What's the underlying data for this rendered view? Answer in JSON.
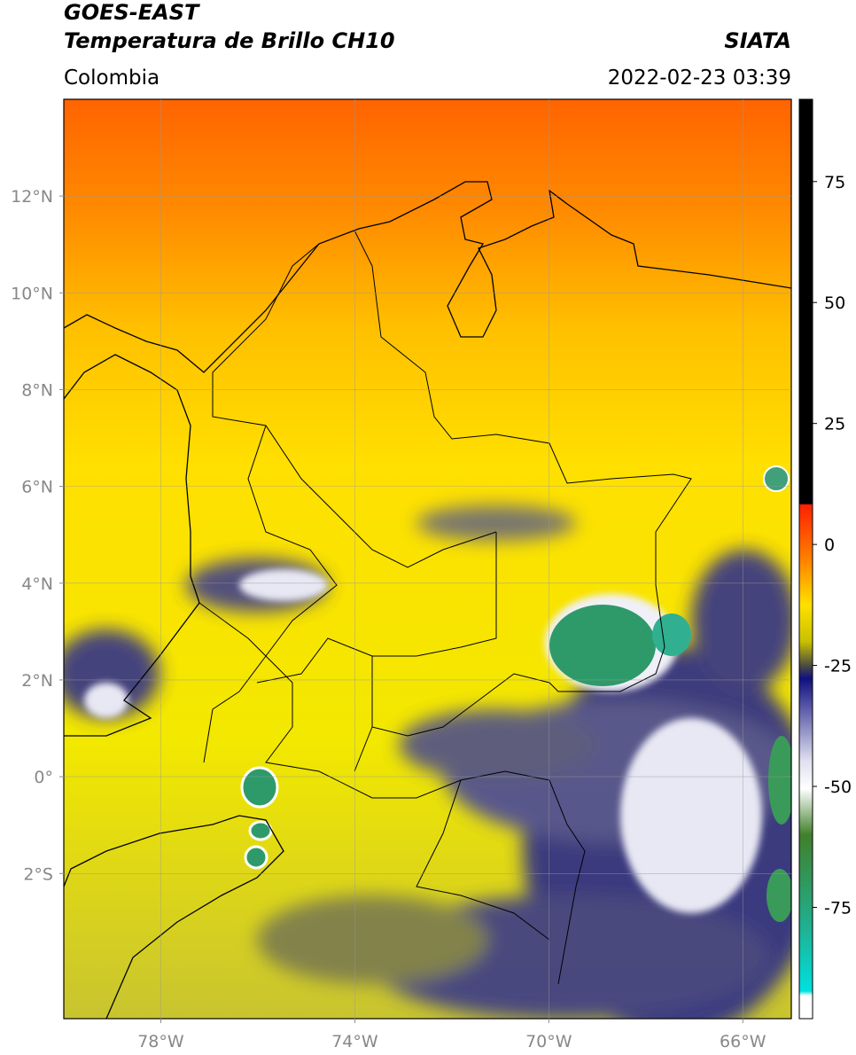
{
  "header": {
    "title": "GOES-EAST",
    "subtitle": "Temperatura de Brillo CH10",
    "source": "SIATA",
    "region": "Colombia",
    "datetime": "2022-02-23 03:39"
  },
  "map": {
    "xlim": [
      -80,
      -65
    ],
    "ylim": [
      -5,
      14
    ],
    "xticks": [
      {
        "value": -78,
        "label": "78°W"
      },
      {
        "value": -74,
        "label": "74°W"
      },
      {
        "value": -70,
        "label": "70°W"
      },
      {
        "value": -66,
        "label": "66°W"
      }
    ],
    "yticks": [
      {
        "value": 12,
        "label": "12°N"
      },
      {
        "value": 10,
        "label": "10°N"
      },
      {
        "value": 8,
        "label": "8°N"
      },
      {
        "value": 6,
        "label": "6°N"
      },
      {
        "value": 4,
        "label": "4°N"
      },
      {
        "value": 2,
        "label": "2°N"
      },
      {
        "value": 0,
        "label": "0°"
      },
      {
        "value": -2,
        "label": "2°S"
      }
    ],
    "grid": true
  },
  "colorbar": {
    "lim": [
      -98,
      92
    ],
    "ticks": [
      75,
      50,
      25,
      0,
      -25,
      -50,
      -75
    ]
  }
}
